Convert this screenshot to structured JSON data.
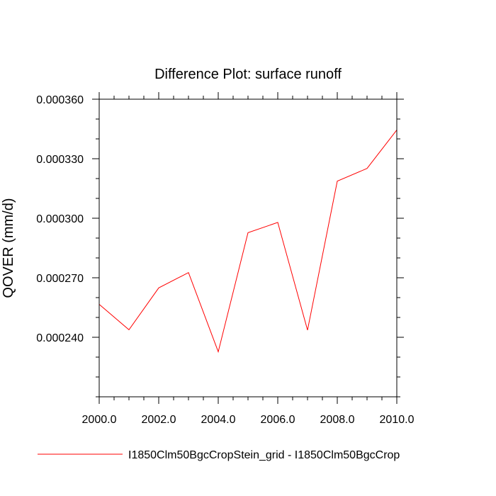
{
  "chart_data": {
    "type": "line",
    "title": "Difference Plot: surface runoff",
    "xlabel": "",
    "ylabel": "QOVER  (mm/d)",
    "xlim": [
      2000.0,
      2010.0
    ],
    "ylim": [
      0.00021,
      0.00036
    ],
    "x_ticks": [
      "2000.0",
      "2002.0",
      "2004.0",
      "2006.0",
      "2008.0",
      "2010.0"
    ],
    "y_ticks": [
      "0.000240",
      "0.000270",
      "0.000300",
      "0.000330",
      "0.000360"
    ],
    "series": [
      {
        "name": "I1850Clm50BgcCropStein_grid - I1850Clm50BgcCrop",
        "color": "#ff0000",
        "x": [
          2000,
          2001,
          2002,
          2003,
          2004,
          2005,
          2006,
          2007,
          2008,
          2009,
          2010
        ],
        "values": [
          0.0002566,
          0.0002438,
          0.0002649,
          0.0002726,
          0.0002327,
          0.0002927,
          0.0002979,
          0.0002436,
          0.0003187,
          0.0003251,
          0.0003445
        ]
      }
    ],
    "grid": false,
    "legend_position": "bottom"
  }
}
